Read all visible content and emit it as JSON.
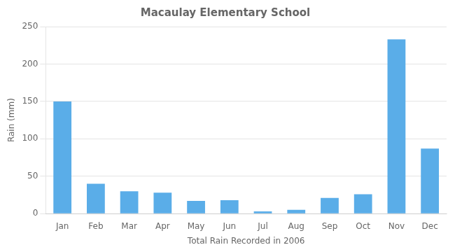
{
  "chart_data": {
    "type": "bar",
    "title": "Macaulay Elementary School",
    "xlabel": "Total Rain Recorded in 2006",
    "ylabel": "Rain (mm)",
    "categories": [
      "Jan",
      "Feb",
      "Mar",
      "Apr",
      "May",
      "Jun",
      "Jul",
      "Aug",
      "Sep",
      "Oct",
      "Nov",
      "Dec"
    ],
    "values": [
      150,
      40,
      30,
      28,
      17,
      18,
      3,
      5,
      21,
      26,
      233,
      87
    ],
    "color": "#5aade8",
    "ylim": [
      0,
      250
    ],
    "yticks": [
      0,
      50,
      100,
      150,
      200,
      250
    ],
    "grid": true
  }
}
